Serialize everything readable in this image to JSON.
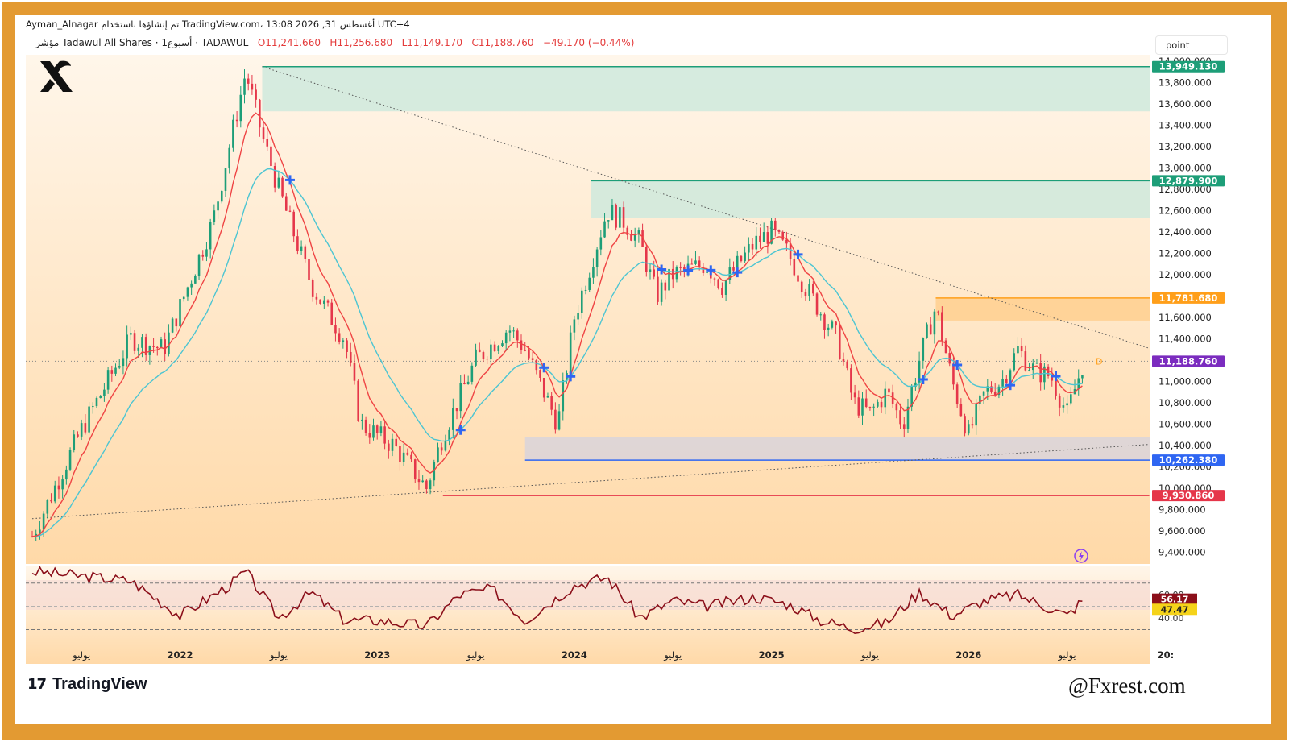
{
  "header": {
    "attribution": "Ayman_Alnagar تم إنشاؤها باستخدام TradingView.com، 13:08 2026 ,31 أغسطس UTC+4",
    "symbol_line": "مؤشر Tadawul All Shares · 1أسبوع · TADAWUL",
    "open": "O11,241.660",
    "high": "H11,256.680",
    "low": "L11,149.170",
    "close": "C11,188.760",
    "change": "−49.170 (−0.44%)",
    "scale_button": "point"
  },
  "footer": {
    "tv_mark": "17",
    "tv_brand": "TradingView",
    "watermark": "@Fxrest.com"
  },
  "colors": {
    "frame": "#e39a32",
    "bg_top": "#fff6ea",
    "bg_bottom": "#ffd9a8",
    "up": "#1d9e78",
    "down": "#e5364a",
    "ema_fast": "#ef4444",
    "ema_slow": "#4cc5d2",
    "marker": "#2f66f2",
    "supply_zone": "#cfe9dd",
    "resistance_zone": "#ffcf8f",
    "support_zone": "#d9d3da",
    "rsi_line": "#8b0f1a"
  },
  "chart_data": {
    "type": "candlestick",
    "symbol": "Tadawul All Shares",
    "exchange": "TADAWUL",
    "timeframe": "1W",
    "price_axis": {
      "ylim": [
        9300,
        14000
      ],
      "ticks": [
        "14,000.000",
        "13,800.000",
        "13,600.000",
        "13,400.000",
        "13,200.000",
        "13,000.000",
        "12,800.000",
        "12,600.000",
        "12,400.000",
        "12,200.000",
        "12,000.000",
        "11,800.000",
        "11,600.000",
        "11,400.000",
        "11,200.000",
        "11,000.000",
        "10,800.000",
        "10,600.000",
        "10,400.000",
        "10,200.000",
        "10,000.000",
        "9,800.000",
        "9,600.000",
        "9,400.000"
      ],
      "tick_values": [
        14000,
        13800,
        13600,
        13400,
        13200,
        13000,
        12800,
        12600,
        12400,
        12200,
        12000,
        11800,
        11600,
        11400,
        11200,
        11000,
        10800,
        10600,
        10400,
        10200,
        10000,
        9800,
        9600,
        9400
      ]
    },
    "price_labels": [
      {
        "text": "13,949.130",
        "value": 13949.13,
        "color": "#1d9e78"
      },
      {
        "text": "12,879.900",
        "value": 12879.9,
        "color": "#1d9e78"
      },
      {
        "text": "11,781.680",
        "value": 11781.68,
        "color": "#ff9f1a"
      },
      {
        "text": "11,188.760",
        "value": 11188.76,
        "color": "#7b2cbf"
      },
      {
        "text": "10,262.380",
        "value": 10262.38,
        "color": "#2f66f2"
      },
      {
        "text": "9,930.860",
        "value": 9930.86,
        "color": "#e5364a"
      }
    ],
    "zones": [
      {
        "name": "supply-1",
        "top": 13949.13,
        "bottom": 13530,
        "start": "2022-06",
        "color": "#cfe9dd"
      },
      {
        "name": "supply-2",
        "top": 12879.9,
        "bottom": 12530,
        "start": "2024-02",
        "color": "#cfe9dd"
      },
      {
        "name": "resistance",
        "top": 11781.68,
        "bottom": 11570,
        "start": "2025-11",
        "color": "#ffcf8f"
      },
      {
        "name": "support",
        "top": 10480,
        "bottom": 10262.38,
        "start": "2023-10",
        "color": "#d9d3da"
      }
    ],
    "lines": [
      {
        "name": "resistance-trendline",
        "from": [
          "2022-06",
          13949
        ],
        "to": [
          "2026-12",
          11310
        ],
        "style": "dotted"
      },
      {
        "name": "support-trendline",
        "from": [
          "2021-04",
          9715
        ],
        "to": [
          "2026-12",
          10410
        ],
        "style": "dotted"
      },
      {
        "name": "low-line",
        "from": [
          "2023-05",
          9930.86
        ],
        "to": [
          "2026-12",
          9930.86
        ],
        "color": "#e5364a"
      }
    ],
    "time_axis": {
      "labels": [
        "يوليو",
        "2022",
        "يوليو",
        "2023",
        "يوليو",
        "2024",
        "يوليو",
        "2025",
        "يوليو",
        "2026",
        "يوليو",
        "20:"
      ],
      "bold": [
        false,
        true,
        false,
        true,
        false,
        true,
        false,
        true,
        false,
        true,
        false,
        true
      ]
    },
    "close_path": [
      [
        "2021-04",
        9550
      ],
      [
        "2021-07",
        10550
      ],
      [
        "2021-10",
        11400
      ],
      [
        "2021-12",
        11300
      ],
      [
        "2022-03",
        12500
      ],
      [
        "2022-05",
        13900
      ],
      [
        "2022-06",
        13300
      ],
      [
        "2022-07",
        12800
      ],
      [
        "2022-09",
        11900
      ],
      [
        "2022-11",
        11400
      ],
      [
        "2022-12",
        10600
      ],
      [
        "2023-02",
        10400
      ],
      [
        "2023-04",
        10000
      ],
      [
        "2023-05",
        10500
      ],
      [
        "2023-07",
        11200
      ],
      [
        "2023-09",
        11500
      ],
      [
        "2023-10",
        11300
      ],
      [
        "2023-12",
        10600
      ],
      [
        "2024-01",
        11600
      ],
      [
        "2024-03",
        12600
      ],
      [
        "2024-04",
        12500
      ],
      [
        "2024-05",
        12300
      ],
      [
        "2024-06",
        11800
      ],
      [
        "2024-07",
        12000
      ],
      [
        "2024-09",
        12100
      ],
      [
        "2024-10",
        11900
      ],
      [
        "2024-12",
        12300
      ],
      [
        "2025-01",
        12400
      ],
      [
        "2025-02",
        12200
      ],
      [
        "2025-03",
        11900
      ],
      [
        "2025-05",
        11400
      ],
      [
        "2025-06",
        10800
      ],
      [
        "2025-07",
        10700
      ],
      [
        "2025-08",
        10900
      ],
      [
        "2025-09",
        10600
      ],
      [
        "2025-10",
        11200
      ],
      [
        "2025-11",
        11700
      ],
      [
        "2025-12",
        11000
      ],
      [
        "2026-01",
        10500
      ],
      [
        "2026-02",
        10900
      ],
      [
        "2026-03",
        11000
      ],
      [
        "2026-04",
        11300
      ],
      [
        "2026-05",
        11100
      ],
      [
        "2026-06",
        11050
      ],
      [
        "2026-07",
        10700
      ],
      [
        "2026-08",
        11188.76
      ]
    ],
    "rsi": {
      "value_label": "56.17",
      "ma_label": "47.47",
      "levels": [
        "60.00",
        "40.00"
      ],
      "path": [
        [
          "2021-04",
          80
        ],
        [
          "2021-10",
          72
        ],
        [
          "2022-01",
          42
        ],
        [
          "2022-04",
          68
        ],
        [
          "2022-05",
          80
        ],
        [
          "2022-07",
          40
        ],
        [
          "2022-09",
          62
        ],
        [
          "2022-11",
          38
        ],
        [
          "2023-01",
          38
        ],
        [
          "2023-04",
          33
        ],
        [
          "2023-06",
          60
        ],
        [
          "2023-08",
          65
        ],
        [
          "2023-10",
          38
        ],
        [
          "2024-01",
          68
        ],
        [
          "2024-03",
          75
        ],
        [
          "2024-05",
          40
        ],
        [
          "2024-07",
          55
        ],
        [
          "2024-09",
          50
        ],
        [
          "2024-12",
          58
        ],
        [
          "2025-02",
          52
        ],
        [
          "2025-04",
          38
        ],
        [
          "2025-06",
          31
        ],
        [
          "2025-08",
          36
        ],
        [
          "2025-10",
          62
        ],
        [
          "2025-12",
          42
        ],
        [
          "2026-02",
          55
        ],
        [
          "2026-04",
          60
        ],
        [
          "2026-06",
          48
        ],
        [
          "2026-07",
          42
        ],
        [
          "2026-08",
          56.17
        ]
      ]
    }
  }
}
